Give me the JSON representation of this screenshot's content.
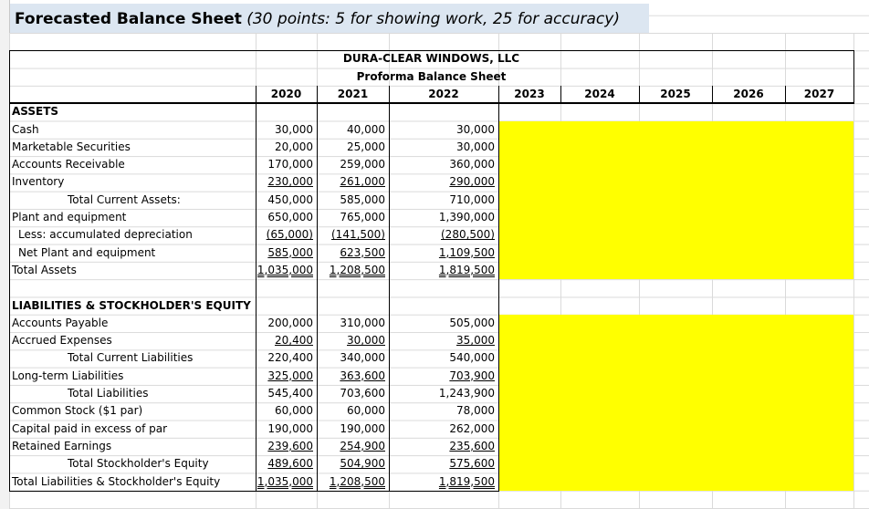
{
  "title": "Forecasted Balance Sheet",
  "title_note": "(30 points: 5 for showing work, 25 for accuracy)",
  "header": {
    "company": "DURA-CLEAR WINDOWS, LLC",
    "subtitle": "Proforma Balance Sheet",
    "years": [
      "2020",
      "2021",
      "2022",
      "2023",
      "2024",
      "2025",
      "2026",
      "2027"
    ]
  },
  "sections": [
    {
      "heading": "ASSETS",
      "rows": [
        {
          "label": "Cash",
          "values": [
            "30,000",
            "40,000",
            "30,000"
          ]
        },
        {
          "label": "Marketable Securities",
          "values": [
            "20,000",
            "25,000",
            "30,000"
          ]
        },
        {
          "label": "Accounts Receivable",
          "values": [
            "170,000",
            "259,000",
            "360,000"
          ]
        },
        {
          "label": "Inventory",
          "values": [
            "230,000",
            "261,000",
            "290,000"
          ],
          "underline": "single"
        },
        {
          "label": "Total Current Assets:",
          "values": [
            "450,000",
            "585,000",
            "710,000"
          ],
          "indent": 2
        },
        {
          "label": "Plant and equipment",
          "values": [
            "650,000",
            "765,000",
            "1,390,000"
          ]
        },
        {
          "label": "Less: accumulated depreciation",
          "values": [
            "(65,000)",
            "(141,500)",
            "(280,500)"
          ],
          "underline": "single",
          "indent": 1
        },
        {
          "label": "Net Plant and equipment",
          "values": [
            "585,000",
            "623,500",
            "1,109,500"
          ],
          "underline": "single",
          "indent": 1
        },
        {
          "label": "Total Assets",
          "values": [
            "1,035,000",
            "1,208,500",
            "1,819,500"
          ],
          "underline": "double"
        }
      ]
    },
    {
      "heading": "LIABILITIES & STOCKHOLDER'S EQUITY",
      "rows": [
        {
          "label": "Accounts Payable",
          "values": [
            "200,000",
            "310,000",
            "505,000"
          ]
        },
        {
          "label": "Accrued Expenses",
          "values": [
            "20,400",
            "30,000",
            "35,000"
          ],
          "underline": "single"
        },
        {
          "label": "Total Current Liabilities",
          "values": [
            "220,400",
            "340,000",
            "540,000"
          ],
          "indent": 2
        },
        {
          "label": "Long-term Liabilities",
          "values": [
            "325,000",
            "363,600",
            "703,900"
          ],
          "underline": "single"
        },
        {
          "label": "Total Liabilities",
          "values": [
            "545,400",
            "703,600",
            "1,243,900"
          ],
          "indent": 2
        },
        {
          "label": "Common Stock ($1 par)",
          "values": [
            "60,000",
            "60,000",
            "78,000"
          ]
        },
        {
          "label": "Capital paid in excess of par",
          "values": [
            "190,000",
            "190,000",
            "262,000"
          ]
        },
        {
          "label": "Retained Earnings",
          "values": [
            "239,600",
            "254,900",
            "235,600"
          ],
          "underline": "single"
        },
        {
          "label": "Total Stockholder's Equity",
          "values": [
            "489,600",
            "504,900",
            "575,600"
          ],
          "underline": "single",
          "indent": 2
        },
        {
          "label": "Total Liabilities & Stockholder's Equity",
          "values": [
            "1,035,000",
            "1,208,500",
            "1,819,500"
          ],
          "underline": "double"
        }
      ]
    }
  ]
}
